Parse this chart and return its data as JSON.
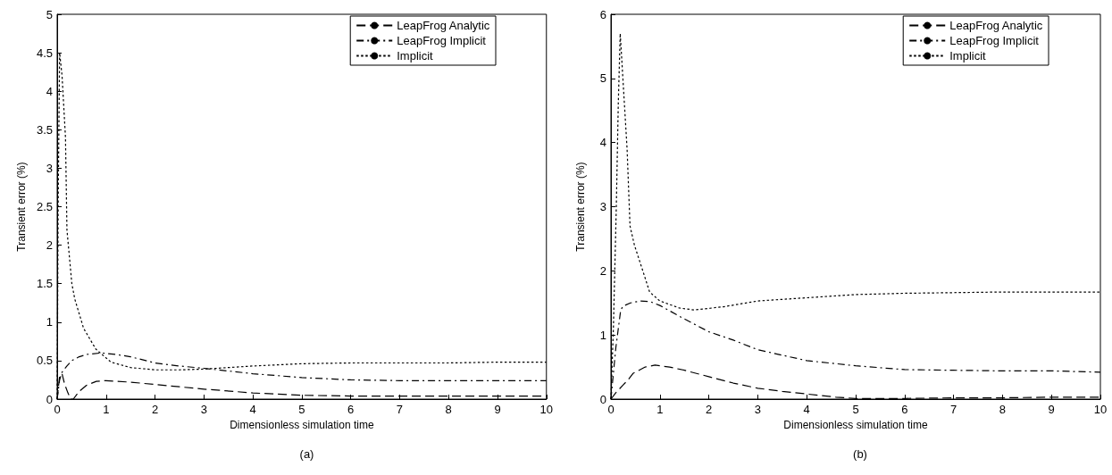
{
  "chart_data": [
    {
      "type": "line",
      "xlabel": "Dimensionless simulation time",
      "ylabel": "Transient error (%)",
      "annotations": [
        "(a)"
      ],
      "xlim": [
        0,
        10
      ],
      "xticks": [
        0,
        1,
        2,
        3,
        4,
        5,
        6,
        7,
        8,
        9,
        10
      ],
      "ylim": [
        0,
        5
      ],
      "yticks": [
        0,
        0.5,
        1,
        1.5,
        2,
        2.5,
        3,
        3.5,
        4,
        4.5,
        5
      ],
      "grid": false,
      "legend": "top right",
      "marker": "none",
      "series": [
        {
          "name": "LeapFrog Analytic",
          "color": "#000000",
          "line_style": "dashed",
          "x": [
            0,
            0.05,
            0.1,
            0.15,
            0.22,
            0.28,
            0.33,
            0.45,
            0.6,
            0.8,
            1,
            1.5,
            2,
            2.5,
            3,
            4,
            5,
            6,
            7,
            8,
            9,
            10
          ],
          "values": [
            0,
            0.3,
            0.33,
            0.2,
            0.08,
            0,
            0,
            0.1,
            0.18,
            0.23,
            0.24,
            0.22,
            0.19,
            0.16,
            0.13,
            0.08,
            0.05,
            0.04,
            0.04,
            0.04,
            0.04,
            0.04
          ]
        },
        {
          "name": "LeapFrog Implicit",
          "color": "#000000",
          "line_style": "dashdot",
          "x": [
            0,
            0.05,
            0.1,
            0.2,
            0.3,
            0.45,
            0.6,
            0.9,
            1.2,
            1.5,
            2,
            2.5,
            3,
            4,
            5,
            6,
            7,
            8,
            9,
            10
          ],
          "values": [
            0,
            0.25,
            0.35,
            0.43,
            0.5,
            0.55,
            0.58,
            0.6,
            0.58,
            0.55,
            0.47,
            0.43,
            0.4,
            0.33,
            0.28,
            0.25,
            0.24,
            0.24,
            0.24,
            0.24
          ]
        },
        {
          "name": "Implicit",
          "color": "#000000",
          "line_style": "dotted",
          "x": [
            0,
            0.02,
            0.05,
            0.1,
            0.17,
            0.2,
            0.3,
            0.36,
            0.54,
            0.79,
            1.1,
            1.5,
            2,
            2.5,
            3,
            4,
            5,
            6,
            7,
            8,
            9,
            10
          ],
          "values": [
            0,
            2.5,
            4.5,
            4.2,
            3.4,
            2.2,
            1.5,
            1.3,
            0.92,
            0.65,
            0.48,
            0.41,
            0.38,
            0.38,
            0.39,
            0.43,
            0.46,
            0.47,
            0.47,
            0.47,
            0.48,
            0.48
          ]
        }
      ]
    },
    {
      "type": "line",
      "xlabel": "Dimensionless simulation time",
      "ylabel": "Transient error (%)",
      "annotations": [
        "(b)"
      ],
      "xlim": [
        0,
        10
      ],
      "xticks": [
        0,
        1,
        2,
        3,
        4,
        5,
        6,
        7,
        8,
        9,
        10
      ],
      "ylim": [
        0,
        6
      ],
      "yticks": [
        0,
        1,
        2,
        3,
        4,
        5,
        6
      ],
      "grid": false,
      "legend": "top right",
      "marker": "none",
      "series": [
        {
          "name": "LeapFrog Analytic",
          "color": "#000000",
          "line_style": "dashed",
          "x": [
            0,
            0.1,
            0.25,
            0.35,
            0.45,
            0.7,
            0.9,
            1.2,
            1.5,
            2,
            2.5,
            3,
            3.5,
            4,
            4.6,
            5,
            6,
            7,
            8,
            9,
            10
          ],
          "values": [
            0,
            0.1,
            0.22,
            0.3,
            0.4,
            0.5,
            0.53,
            0.5,
            0.45,
            0.35,
            0.25,
            0.17,
            0.12,
            0.08,
            0.03,
            0.01,
            0.01,
            0.02,
            0.02,
            0.03,
            0.03
          ]
        },
        {
          "name": "LeapFrog Implicit",
          "color": "#000000",
          "line_style": "dashdot",
          "x": [
            0,
            0.05,
            0.1,
            0.2,
            0.25,
            0.4,
            0.6,
            0.8,
            1,
            1.5,
            2,
            2.5,
            3,
            4,
            5,
            6,
            7,
            8,
            9,
            10
          ],
          "values": [
            0,
            0.4,
            0.8,
            1.39,
            1.45,
            1.5,
            1.53,
            1.52,
            1.46,
            1.25,
            1.05,
            0.92,
            0.77,
            0.6,
            0.52,
            0.46,
            0.45,
            0.44,
            0.44,
            0.42
          ]
        },
        {
          "name": "Implicit",
          "color": "#000000",
          "line_style": "dotted",
          "x": [
            0,
            0.05,
            0.11,
            0.15,
            0.19,
            0.26,
            0.33,
            0.39,
            0.48,
            0.63,
            0.79,
            1,
            1.4,
            1.7,
            2.3,
            3,
            4,
            5,
            6,
            7,
            8,
            9,
            10
          ],
          "values": [
            0,
            1.1,
            3,
            4.6,
            5.7,
            4.8,
            3.9,
            2.7,
            2.4,
            2.05,
            1.67,
            1.53,
            1.42,
            1.39,
            1.44,
            1.53,
            1.58,
            1.63,
            1.65,
            1.66,
            1.67,
            1.67,
            1.67
          ]
        }
      ]
    }
  ]
}
